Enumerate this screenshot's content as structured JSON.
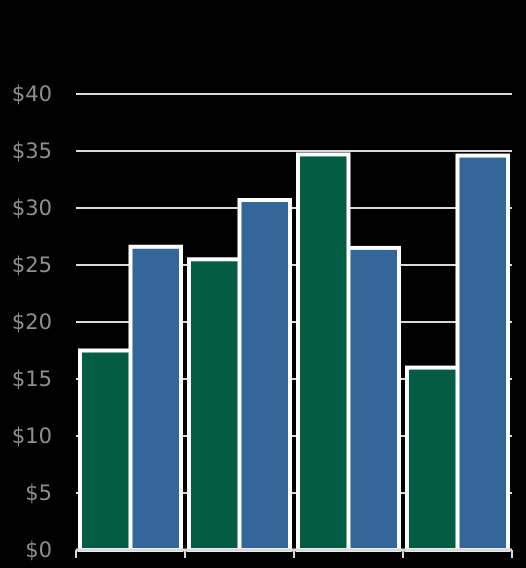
{
  "chart_data": {
    "type": "bar",
    "title": "",
    "xlabel": "",
    "ylabel": "",
    "ylim": [
      0,
      40
    ],
    "y_ticks": [
      0,
      5,
      10,
      15,
      20,
      25,
      30,
      35,
      40
    ],
    "y_tick_prefix": "$",
    "grid": true,
    "categories": [
      "",
      "",
      "",
      ""
    ],
    "series": [
      {
        "values": [
          17.5,
          25.5,
          34.7,
          16
        ],
        "color": "#035d42"
      },
      {
        "values": [
          26.6,
          30.7,
          26.5,
          34.6
        ],
        "color": "#336699"
      }
    ],
    "bar_outline_color": "#ffffff",
    "gridline_color": "#d9d9d9",
    "background": "#000000"
  }
}
